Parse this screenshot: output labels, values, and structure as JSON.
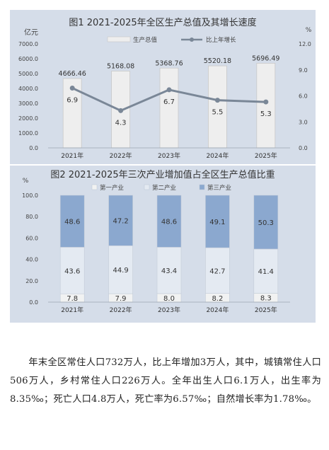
{
  "chart_data": [
    {
      "type": "bar",
      "title": "图1   2021-2025年全区生产总值及其增长速度",
      "categories": [
        "2021年",
        "2022年",
        "2023年",
        "2024年",
        "2025年"
      ],
      "ylabel": "亿元",
      "ylabel_right": "%",
      "ylim": [
        0,
        7000
      ],
      "ylim_right": [
        0,
        12
      ],
      "y_ticks": [
        "7000.0",
        "6000.0",
        "5000.0",
        "4000.0",
        "3000.0",
        "2000.0",
        "1000.0",
        "0.0"
      ],
      "y_ticks_right": [
        "12.0",
        "9.0",
        "6.0",
        "3.0",
        "0.0"
      ],
      "legend_position": "top-center",
      "series": [
        {
          "name": "生产总值",
          "type": "bar",
          "values": [
            4666.46,
            5168.08,
            5368.76,
            5520.18,
            5696.49
          ],
          "labels": [
            "4666.46",
            "5168.08",
            "5368.76",
            "5520.18",
            "5696.49"
          ]
        },
        {
          "name": "比上年增长",
          "type": "line",
          "axis": "right",
          "values": [
            6.9,
            4.3,
            6.7,
            5.5,
            5.3
          ],
          "labels": [
            "6.9",
            "4.3",
            "6.7",
            "5.5",
            "5.3"
          ]
        }
      ],
      "colors": {
        "bar": "#eeeeee",
        "line": "#7a8797"
      }
    },
    {
      "type": "stacked-bar",
      "title": "图2   2021-2025年三次产业增加值占全区生产总值比重",
      "categories": [
        "2021年",
        "2022年",
        "2023年",
        "2024年",
        "2025年"
      ],
      "ylabel": "%",
      "ylim": [
        0,
        100
      ],
      "y_ticks": [
        "100.0",
        "80.0",
        "60.0",
        "40.0",
        "20.0",
        "0.0"
      ],
      "legend_position": "top-center",
      "series": [
        {
          "name": "第一产业",
          "values": [
            7.8,
            7.9,
            8.0,
            8.2,
            8.3
          ],
          "labels": [
            "7.8",
            "7.9",
            "8.0",
            "8.2",
            "8.3"
          ]
        },
        {
          "name": "第二产业",
          "values": [
            43.6,
            44.9,
            43.4,
            42.7,
            41.4
          ],
          "labels": [
            "43.6",
            "44.9",
            "43.4",
            "42.7",
            "41.4"
          ]
        },
        {
          "name": "第三产业",
          "values": [
            48.6,
            47.2,
            48.6,
            49.1,
            50.3
          ],
          "labels": [
            "48.6",
            "47.2",
            "48.6",
            "49.1",
            "50.3"
          ]
        }
      ],
      "colors": {
        "第一产业": "#f1f2f2",
        "第二产业": "#e4eaf2",
        "第三产业": "#8ba8cf"
      }
    }
  ],
  "paragraph": {
    "text": "年末全区常住人口732万人，比上年增加3万人，其中，城镇常住人口506万人，乡村常住人口226万人。全年出生人口6.1万人，出生率为8.35‰；死亡人口4.8万人，死亡率为6.57‰；自然增长率为1.78‰。"
  }
}
